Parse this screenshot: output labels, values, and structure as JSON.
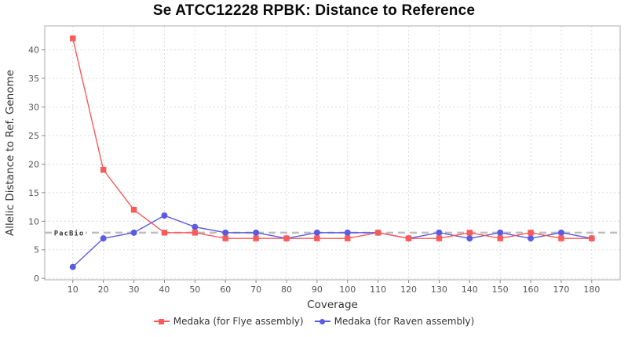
{
  "title": "Se ATCC12228 RPBK: Distance to Reference",
  "chart_data": {
    "type": "line",
    "title": "Se ATCC12228 RPBK: Distance to Reference",
    "xlabel": "Coverage",
    "ylabel": "Allelic Distance to Ref. Genome",
    "x": [
      10,
      20,
      30,
      40,
      50,
      60,
      70,
      80,
      90,
      100,
      110,
      120,
      130,
      140,
      150,
      160,
      170,
      180
    ],
    "series": [
      {
        "name": "Medaka (for Flye assembly)",
        "marker": "square",
        "color": "#fa5a5a",
        "values": [
          42,
          19,
          12,
          8,
          8,
          7,
          7,
          7,
          7,
          7,
          8,
          7,
          7,
          8,
          7,
          8,
          7,
          7
        ]
      },
      {
        "name": "Medaka (for Raven assembly)",
        "marker": "circle",
        "color": "#5a5ae2",
        "values": [
          2,
          7,
          8,
          11,
          9,
          8,
          8,
          7,
          8,
          8,
          8,
          7,
          8,
          7,
          8,
          7,
          8,
          7
        ]
      }
    ],
    "reference_line": {
      "label": "PacBio",
      "value": 8,
      "color": "#bdbdbd",
      "style": "dashed"
    },
    "xticks": [
      10,
      20,
      30,
      40,
      50,
      60,
      70,
      80,
      90,
      100,
      110,
      120,
      130,
      140,
      150,
      160,
      170,
      180
    ],
    "yticks": [
      0,
      5,
      10,
      15,
      20,
      25,
      30,
      35,
      40
    ],
    "xlim": [
      0.8,
      189.3
    ],
    "ylim": [
      -0.25,
      44.2
    ],
    "grid": true,
    "legend_position": "bottom"
  },
  "colors": {
    "grid": "#dbdbdb",
    "border": "#ababab",
    "tick": "#8a8a8a",
    "tick_label": "#555555",
    "axis_title": "#333333",
    "ref_label_text": "#3a3a3a"
  }
}
